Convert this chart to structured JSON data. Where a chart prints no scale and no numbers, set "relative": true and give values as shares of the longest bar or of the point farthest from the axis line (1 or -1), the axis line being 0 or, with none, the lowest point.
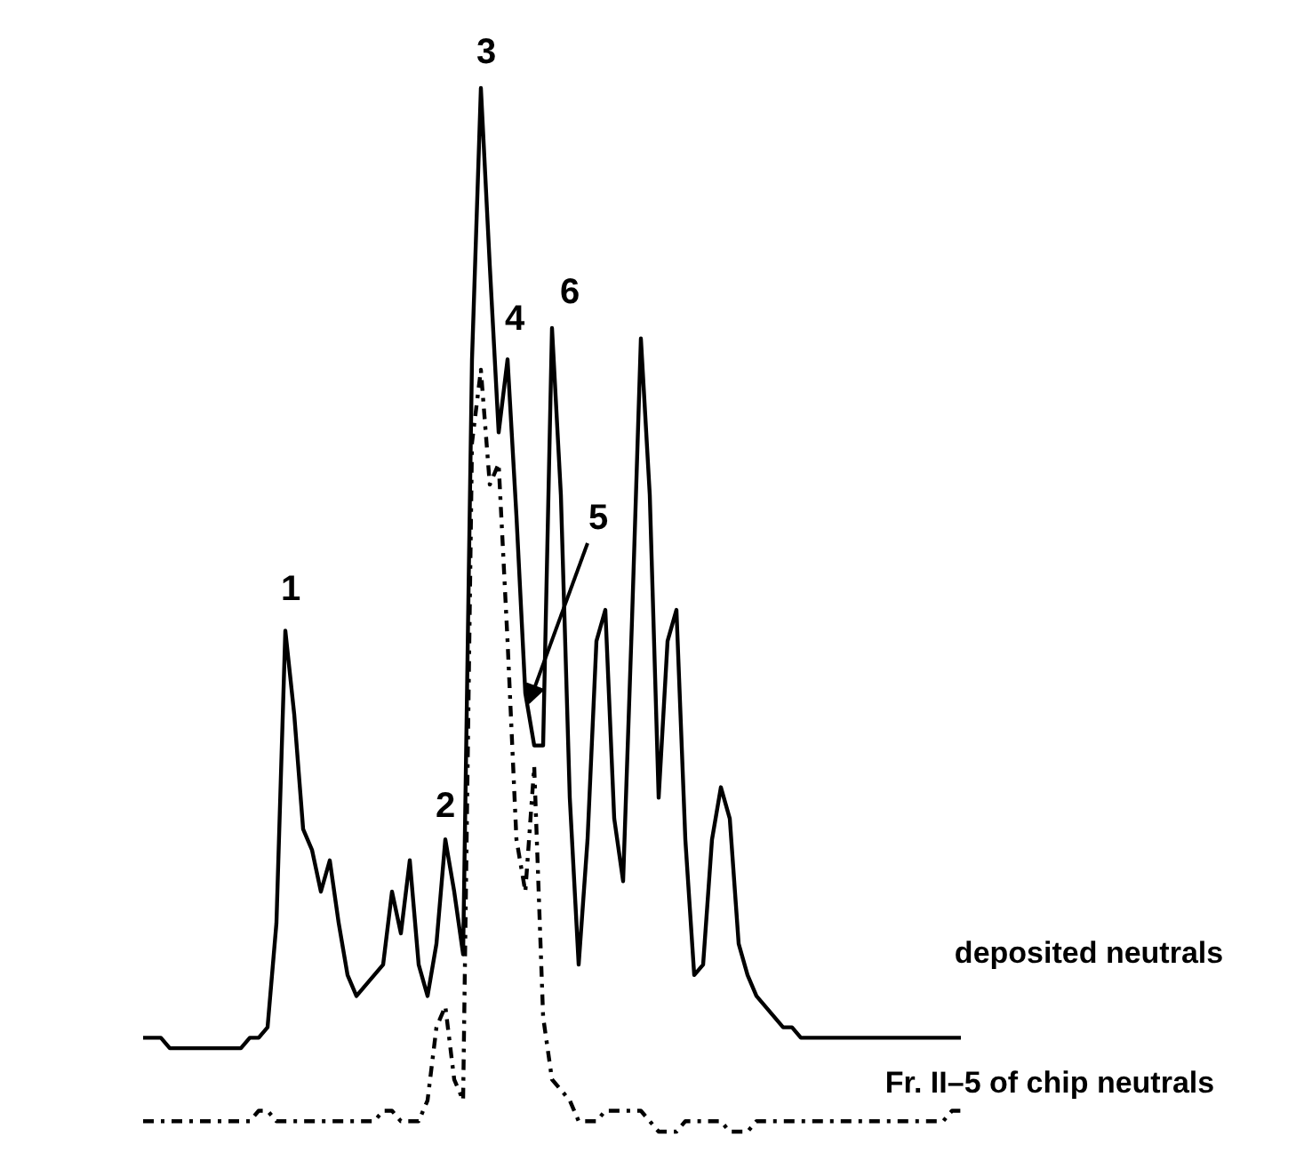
{
  "chart_data": {
    "type": "line",
    "relative": true,
    "categories": [
      null,
      null,
      null,
      null,
      null,
      null,
      null,
      null,
      null,
      null,
      null,
      null,
      null,
      null,
      null,
      null,
      null,
      null,
      null,
      null,
      null,
      null,
      null,
      null,
      null,
      null,
      null,
      null,
      null,
      null,
      null,
      null,
      null,
      null,
      null,
      null,
      null,
      null,
      null,
      null,
      null,
      null,
      null,
      null,
      null,
      null,
      null,
      null,
      null,
      null,
      null,
      null,
      null,
      null,
      null,
      null,
      null,
      null,
      null,
      null,
      null,
      null,
      null,
      null,
      null,
      null,
      null,
      null,
      null,
      null,
      null,
      null,
      null,
      null,
      null,
      null,
      null,
      null,
      null,
      null,
      null,
      null,
      null,
      null,
      null,
      null,
      null,
      null,
      null,
      null,
      null,
      null,
      null
    ],
    "series": [
      {
        "name": "deposited neutrals",
        "color": "#000000",
        "line_style": "solid",
        "values": [
          0.09,
          0.09,
          0.09,
          0.08,
          0.08,
          0.08,
          0.08,
          0.08,
          0.08,
          0.08,
          0.08,
          0.08,
          0.09,
          0.09,
          0.1,
          0.2,
          0.48,
          0.4,
          0.29,
          0.27,
          0.23,
          0.26,
          0.2,
          0.15,
          0.13,
          0.14,
          0.15,
          0.16,
          0.23,
          0.19,
          0.26,
          0.16,
          0.13,
          0.18,
          0.28,
          0.23,
          0.17,
          0.74,
          1.0,
          0.83,
          0.67,
          0.74,
          0.59,
          0.42,
          0.37,
          0.37,
          0.77,
          0.61,
          0.32,
          0.16,
          0.28,
          0.47,
          0.5,
          0.3,
          0.24,
          0.49,
          0.76,
          0.61,
          0.32,
          0.47,
          0.5,
          0.28,
          0.15,
          0.16,
          0.28,
          0.33,
          0.3,
          0.18,
          0.15,
          0.13,
          0.12,
          0.11,
          0.1,
          0.1,
          0.09,
          0.09,
          0.09,
          0.09,
          0.09,
          0.09,
          0.09,
          0.09,
          0.09,
          0.09,
          0.09,
          0.09,
          0.09,
          0.09,
          0.09,
          0.09,
          0.09,
          0.09,
          0.09
        ]
      },
      {
        "name": "Fr. II–5 of chip neutrals",
        "color": "#000000",
        "line_style": "dashdot",
        "values": [
          0.01,
          0.01,
          0.01,
          0.01,
          0.01,
          0.01,
          0.01,
          0.01,
          0.01,
          0.01,
          0.01,
          0.01,
          0.01,
          0.02,
          0.02,
          0.01,
          0.01,
          0.01,
          0.01,
          0.01,
          0.01,
          0.01,
          0.01,
          0.01,
          0.01,
          0.01,
          0.01,
          0.02,
          0.02,
          0.01,
          0.01,
          0.01,
          0.03,
          0.1,
          0.12,
          0.05,
          0.03,
          0.66,
          0.73,
          0.62,
          0.64,
          0.47,
          0.28,
          0.23,
          0.35,
          0.11,
          0.05,
          0.04,
          0.03,
          0.01,
          0.01,
          0.01,
          0.02,
          0.02,
          0.02,
          0.02,
          0.02,
          0.01,
          0.0,
          0.0,
          0.0,
          0.01,
          0.01,
          0.01,
          0.01,
          0.01,
          0.0,
          0.0,
          0.0,
          0.01,
          0.01,
          0.01,
          0.01,
          0.01,
          0.01,
          0.01,
          0.01,
          0.01,
          0.01,
          0.01,
          0.01,
          0.01,
          0.01,
          0.01,
          0.01,
          0.01,
          0.01,
          0.01,
          0.01,
          0.01,
          0.01,
          0.02,
          0.02
        ]
      }
    ],
    "annotations": [
      "1",
      "2",
      "3",
      "4",
      "5",
      "6"
    ]
  }
}
